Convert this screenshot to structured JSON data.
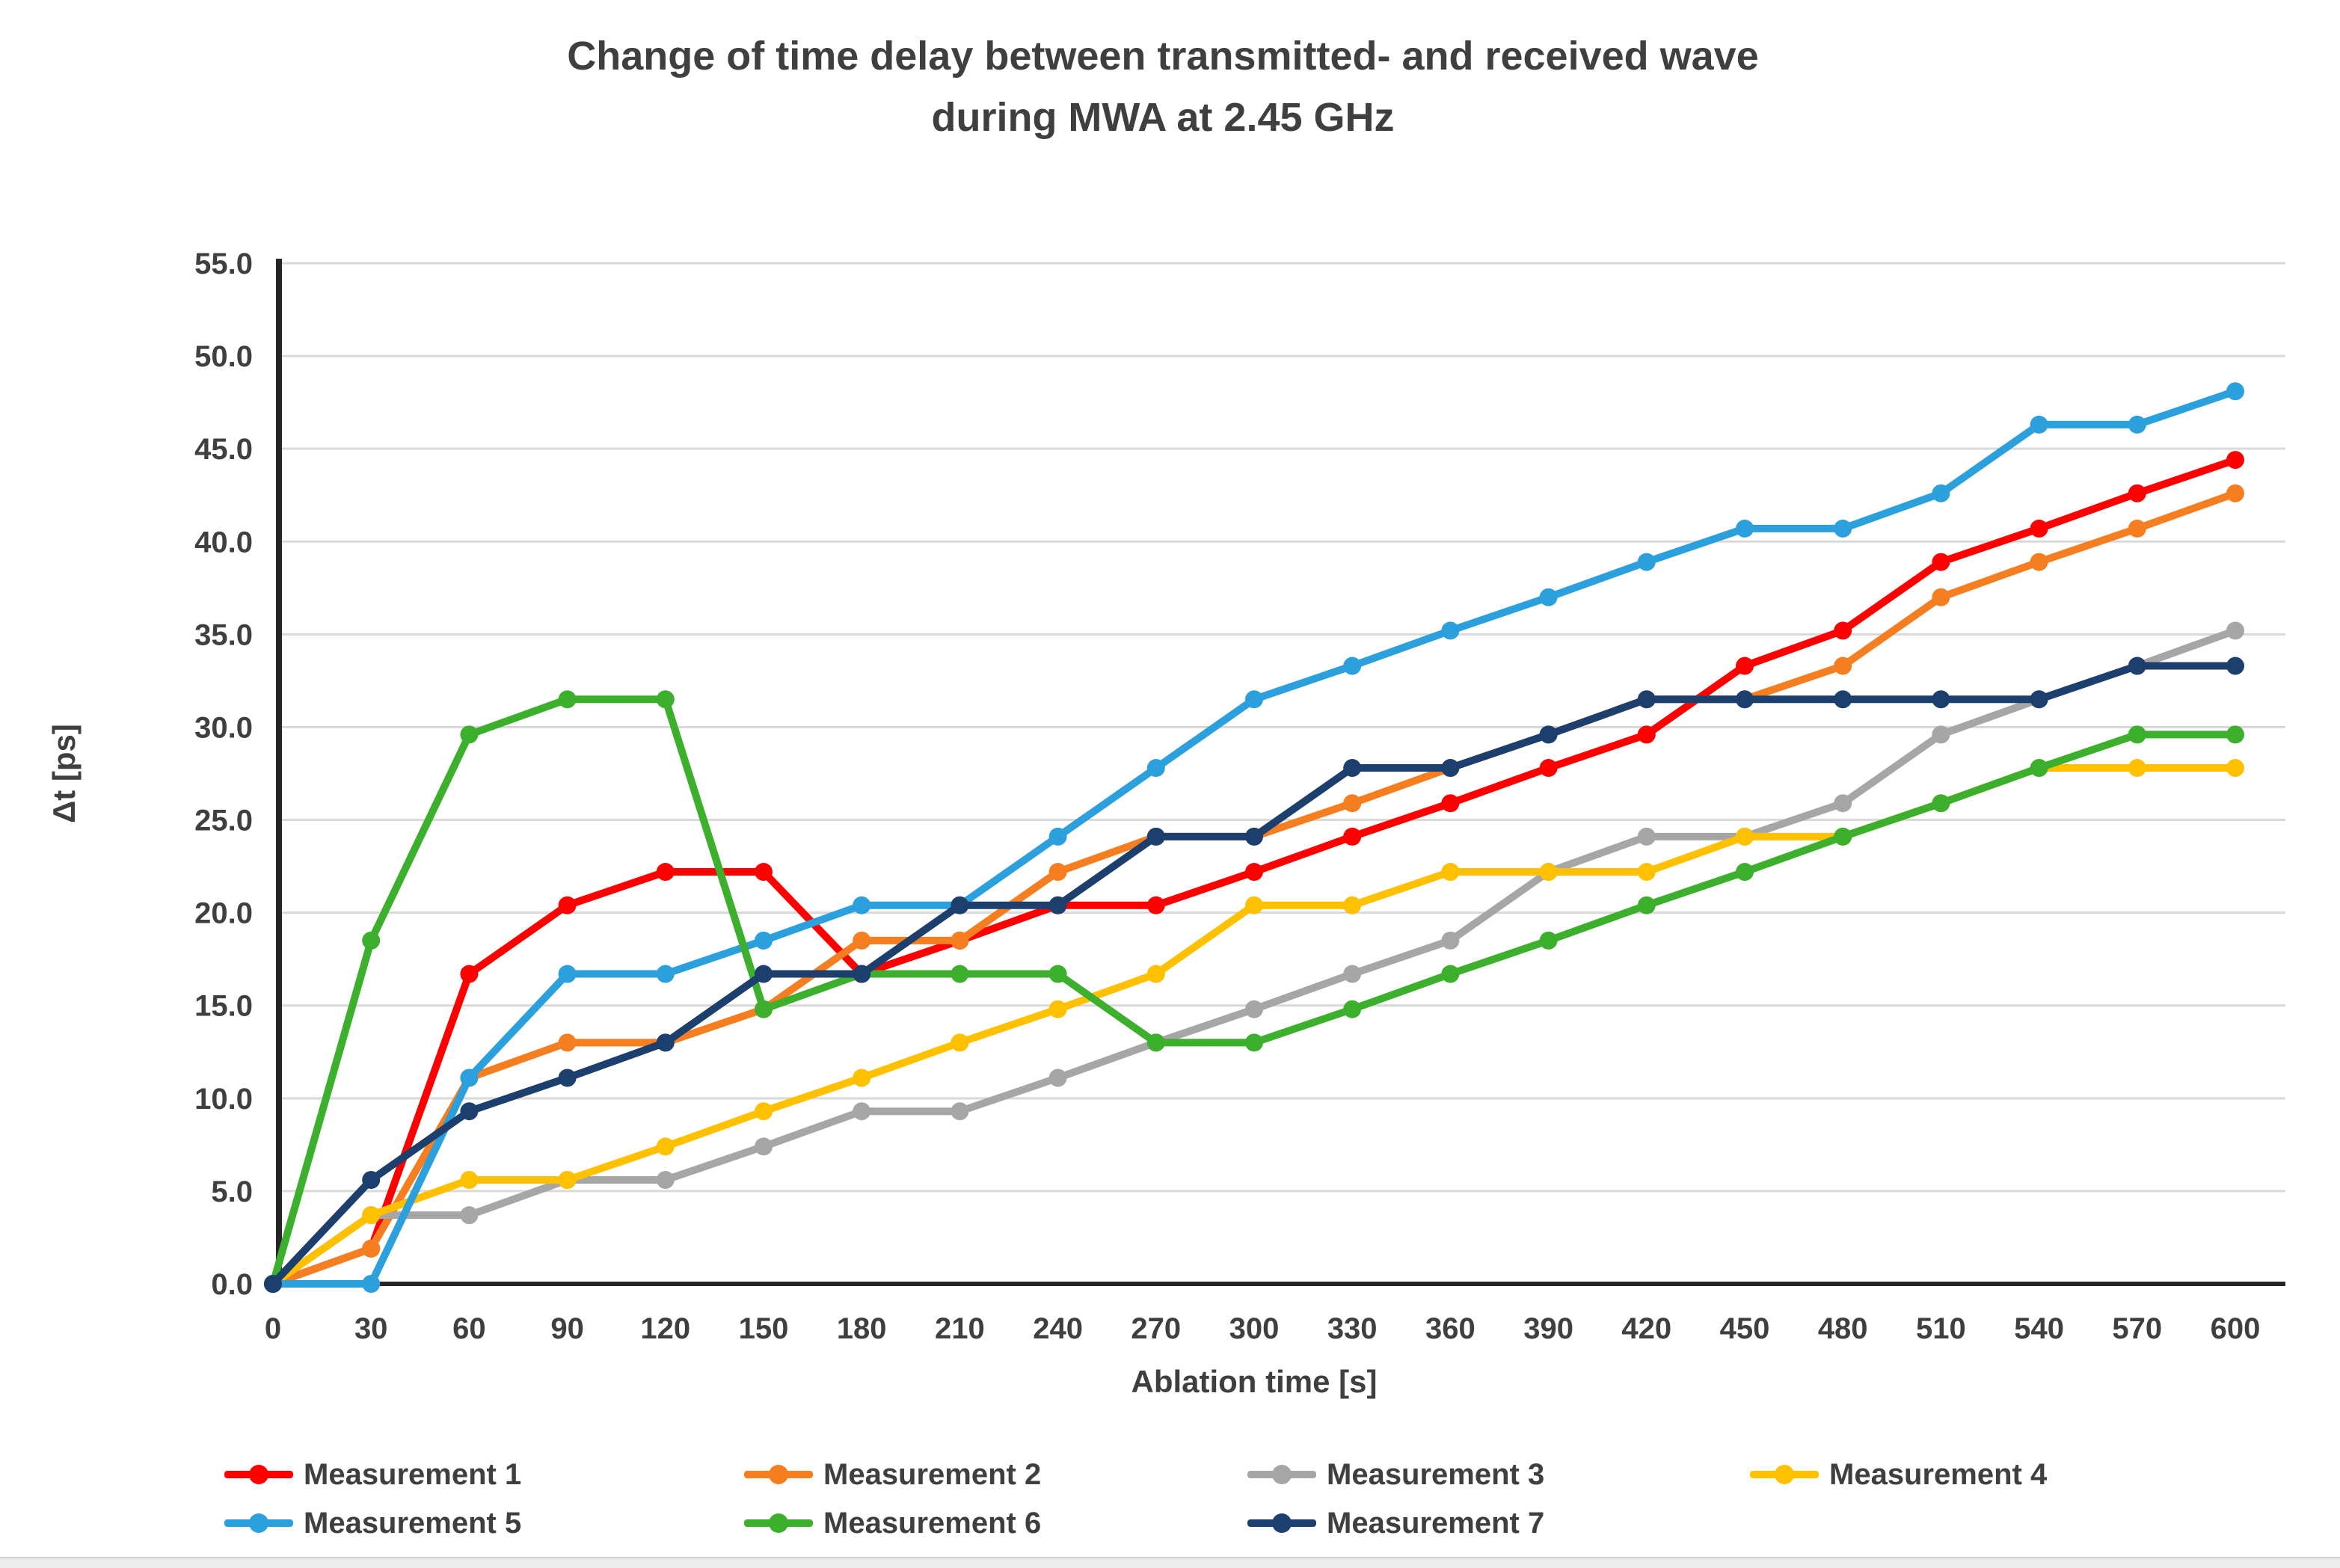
{
  "chart_data": {
    "type": "line",
    "title_line1": "Change of time delay between transmitted- and received wave",
    "title_line2": "during MWA at 2.45 GHz",
    "xlabel": "Ablation time [s]",
    "ylabel": "Δt [ps]",
    "x": [
      0,
      30,
      60,
      90,
      120,
      150,
      180,
      210,
      240,
      270,
      300,
      330,
      360,
      390,
      420,
      450,
      480,
      510,
      540,
      570,
      600
    ],
    "xtick_labels": [
      "0",
      "30",
      "60",
      "90",
      "120",
      "150",
      "180",
      "210",
      "240",
      "270",
      "300",
      "330",
      "360",
      "390",
      "420",
      "450",
      "480",
      "510",
      "540",
      "570",
      "600"
    ],
    "ylim": [
      0,
      55
    ],
    "ytick_step": 5,
    "ytick_labels": [
      "0.0",
      "5.0",
      "10.0",
      "15.0",
      "20.0",
      "25.0",
      "30.0",
      "35.0",
      "40.0",
      "45.0",
      "50.0",
      "55.0"
    ],
    "grid": "horizontal-only",
    "grid_color": "#d9d9d9",
    "axis_color": "#262626",
    "text_color": "#3f3f3f",
    "legend_position": "bottom",
    "series": [
      {
        "name": "Measurement 1",
        "color": "#fe0000",
        "values": [
          0,
          1.9,
          16.7,
          20.4,
          22.2,
          22.2,
          16.7,
          18.5,
          20.4,
          20.4,
          22.2,
          24.1,
          25.9,
          27.8,
          29.6,
          33.3,
          35.2,
          38.9,
          40.7,
          42.6,
          44.4
        ]
      },
      {
        "name": "Measurement 2",
        "color": "#f57e20",
        "values": [
          0,
          1.9,
          11.1,
          13.0,
          13.0,
          14.8,
          18.5,
          18.5,
          22.2,
          24.1,
          24.1,
          25.9,
          27.8,
          29.6,
          31.5,
          31.5,
          33.3,
          37.0,
          38.9,
          40.7,
          42.6
        ]
      },
      {
        "name": "Measurement 3",
        "color": "#a6a6a6",
        "values": [
          0,
          3.7,
          3.7,
          5.6,
          5.6,
          7.4,
          9.3,
          9.3,
          11.1,
          13.0,
          14.8,
          16.7,
          18.5,
          22.2,
          24.1,
          24.1,
          25.9,
          29.6,
          31.5,
          33.3,
          35.2
        ]
      },
      {
        "name": "Measurement 4",
        "color": "#ffc000",
        "values": [
          0,
          3.7,
          5.6,
          5.6,
          7.4,
          9.3,
          11.1,
          13.0,
          14.8,
          16.7,
          20.4,
          20.4,
          22.2,
          22.2,
          22.2,
          24.1,
          24.1,
          25.9,
          27.8,
          27.8,
          27.8
        ]
      },
      {
        "name": "Measurement 5",
        "color": "#2ba0dc",
        "values": [
          0,
          0,
          11.1,
          16.7,
          16.7,
          18.5,
          20.4,
          20.4,
          24.1,
          27.8,
          31.5,
          33.3,
          35.2,
          37.0,
          38.9,
          40.7,
          40.7,
          42.6,
          46.3,
          46.3,
          48.1
        ]
      },
      {
        "name": "Measurement 6",
        "color": "#3cb02c",
        "values": [
          0,
          18.5,
          29.6,
          31.5,
          31.5,
          14.8,
          16.7,
          16.7,
          16.7,
          13.0,
          13.0,
          14.8,
          16.7,
          18.5,
          20.4,
          22.2,
          24.1,
          25.9,
          27.8,
          29.6,
          29.6
        ]
      },
      {
        "name": "Measurement 7",
        "color": "#1c3f6e",
        "values": [
          0,
          5.6,
          9.3,
          11.1,
          13.0,
          16.7,
          16.7,
          20.4,
          20.4,
          24.1,
          24.1,
          27.8,
          27.8,
          29.6,
          31.5,
          31.5,
          31.5,
          31.5,
          31.5,
          33.3,
          33.3
        ]
      }
    ],
    "legend_rows": [
      [
        0,
        1,
        2,
        3
      ],
      [
        4,
        5,
        6
      ]
    ]
  }
}
